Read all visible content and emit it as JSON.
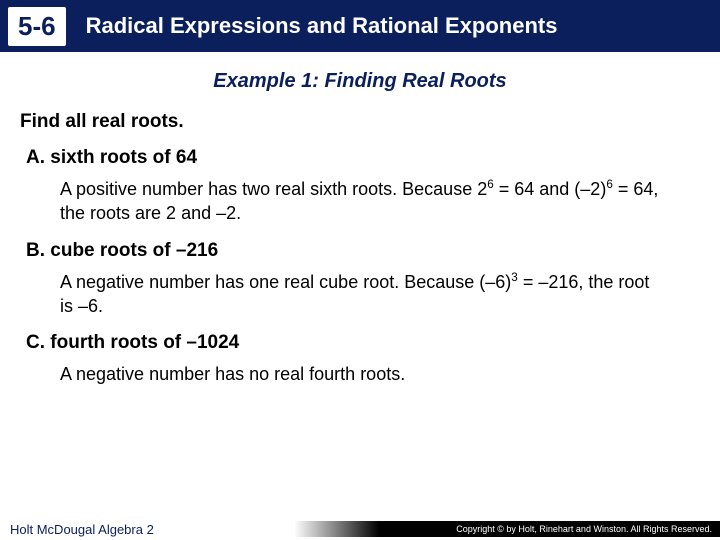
{
  "header": {
    "section_number": "5-6",
    "title": "Radical Expressions and Rational Exponents",
    "bg_color": "#0a1f5c",
    "text_color": "#ffffff"
  },
  "example": {
    "title": "Example 1: Finding Real Roots",
    "instruction": "Find all real roots."
  },
  "parts": {
    "a": {
      "label": "A. sixth roots of 64",
      "text_before": "A positive number has two real sixth roots. Because 2",
      "exp1": "6",
      "text_mid1": " = 64 and (–2)",
      "exp2": "6",
      "text_after": " = 64, the roots are 2 and –2."
    },
    "b": {
      "label": "B. cube roots of –216",
      "text_before": "A negative number has one real cube root. Because (–6)",
      "exp1": "3",
      "text_after": " = –216, the root is –6."
    },
    "c": {
      "label": "C. fourth roots of –1024",
      "text": "A negative number has no real fourth roots."
    }
  },
  "footer": {
    "left": "Holt McDougal Algebra 2",
    "copyright": "Copyright © by Holt, Rinehart and Winston. All Rights Reserved."
  },
  "colors": {
    "accent": "#0a1f5c",
    "background": "#ffffff",
    "body_text": "#000000"
  }
}
